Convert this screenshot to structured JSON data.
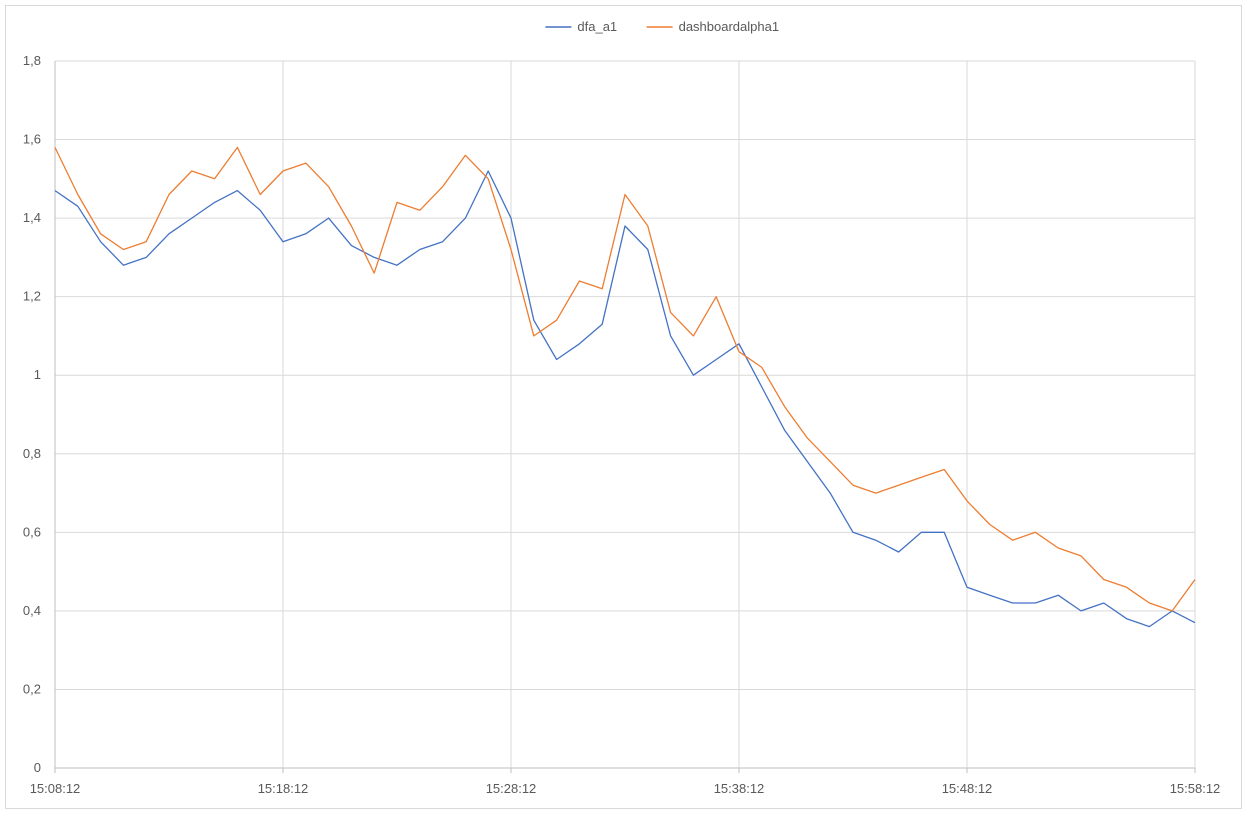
{
  "chart_data": {
    "type": "line",
    "title": "",
    "xlabel": "",
    "ylabel": "",
    "ylim": [
      0,
      1.8
    ],
    "yticks": [
      "0",
      "0,2",
      "0,4",
      "0,6",
      "0,8",
      "1",
      "1,2",
      "1,4",
      "1,6",
      "1,8"
    ],
    "xlim": [
      "15:08:12",
      "15:58:12"
    ],
    "xticks": [
      "15:08:12",
      "15:18:12",
      "15:28:12",
      "15:38:12",
      "15:48:12",
      "15:58:12"
    ],
    "grid": true,
    "legend": "top-center",
    "series": [
      {
        "name": "dfa_a1",
        "color": "#4472c4",
        "x": [
          "15:08:12",
          "15:09:12",
          "15:10:12",
          "15:11:12",
          "15:12:12",
          "15:13:12",
          "15:14:12",
          "15:15:12",
          "15:16:12",
          "15:17:12",
          "15:18:12",
          "15:19:12",
          "15:20:12",
          "15:21:12",
          "15:22:12",
          "15:23:12",
          "15:24:12",
          "15:25:12",
          "15:26:12",
          "15:27:12",
          "15:28:12",
          "15:29:12",
          "15:30:12",
          "15:31:12",
          "15:32:12",
          "15:33:12",
          "15:34:12",
          "15:35:12",
          "15:36:12",
          "15:37:12",
          "15:38:12",
          "15:39:12",
          "15:40:12",
          "15:41:12",
          "15:42:12",
          "15:43:12",
          "15:44:12",
          "15:45:12",
          "15:46:12",
          "15:47:12",
          "15:48:12",
          "15:49:12",
          "15:50:12",
          "15:51:12",
          "15:52:12",
          "15:53:12",
          "15:54:12",
          "15:55:12",
          "15:56:12",
          "15:57:12",
          "15:58:12"
        ],
        "values": [
          1.47,
          1.43,
          1.34,
          1.28,
          1.3,
          1.36,
          1.4,
          1.44,
          1.47,
          1.42,
          1.34,
          1.36,
          1.4,
          1.33,
          1.3,
          1.28,
          1.32,
          1.34,
          1.4,
          1.52,
          1.4,
          1.14,
          1.04,
          1.08,
          1.13,
          1.38,
          1.32,
          1.1,
          1.0,
          1.04,
          1.08,
          0.97,
          0.86,
          0.78,
          0.7,
          0.6,
          0.58,
          0.55,
          0.6,
          0.6,
          0.46,
          0.44,
          0.42,
          0.42,
          0.44,
          0.4,
          0.42,
          0.38,
          0.36,
          0.4,
          0.37
        ]
      },
      {
        "name": "dashboardalpha1",
        "color": "#ed7d31",
        "x": [
          "15:08:12",
          "15:09:12",
          "15:10:12",
          "15:11:12",
          "15:12:12",
          "15:13:12",
          "15:14:12",
          "15:15:12",
          "15:16:12",
          "15:17:12",
          "15:18:12",
          "15:19:12",
          "15:20:12",
          "15:21:12",
          "15:22:12",
          "15:23:12",
          "15:24:12",
          "15:25:12",
          "15:26:12",
          "15:27:12",
          "15:28:12",
          "15:29:12",
          "15:30:12",
          "15:31:12",
          "15:32:12",
          "15:33:12",
          "15:34:12",
          "15:35:12",
          "15:36:12",
          "15:37:12",
          "15:38:12",
          "15:39:12",
          "15:40:12",
          "15:41:12",
          "15:42:12",
          "15:43:12",
          "15:44:12",
          "15:45:12",
          "15:46:12",
          "15:47:12",
          "15:48:12",
          "15:49:12",
          "15:50:12",
          "15:51:12",
          "15:52:12",
          "15:53:12",
          "15:54:12",
          "15:55:12",
          "15:56:12",
          "15:57:12",
          "15:58:12"
        ],
        "values": [
          1.58,
          1.46,
          1.36,
          1.32,
          1.34,
          1.46,
          1.52,
          1.5,
          1.58,
          1.46,
          1.52,
          1.54,
          1.48,
          1.38,
          1.26,
          1.44,
          1.42,
          1.48,
          1.56,
          1.5,
          1.32,
          1.1,
          1.14,
          1.24,
          1.22,
          1.46,
          1.38,
          1.16,
          1.1,
          1.2,
          1.06,
          1.02,
          0.92,
          0.84,
          0.78,
          0.72,
          0.7,
          0.72,
          0.74,
          0.76,
          0.68,
          0.62,
          0.58,
          0.6,
          0.56,
          0.54,
          0.48,
          0.46,
          0.42,
          0.4,
          0.48
        ]
      }
    ]
  }
}
